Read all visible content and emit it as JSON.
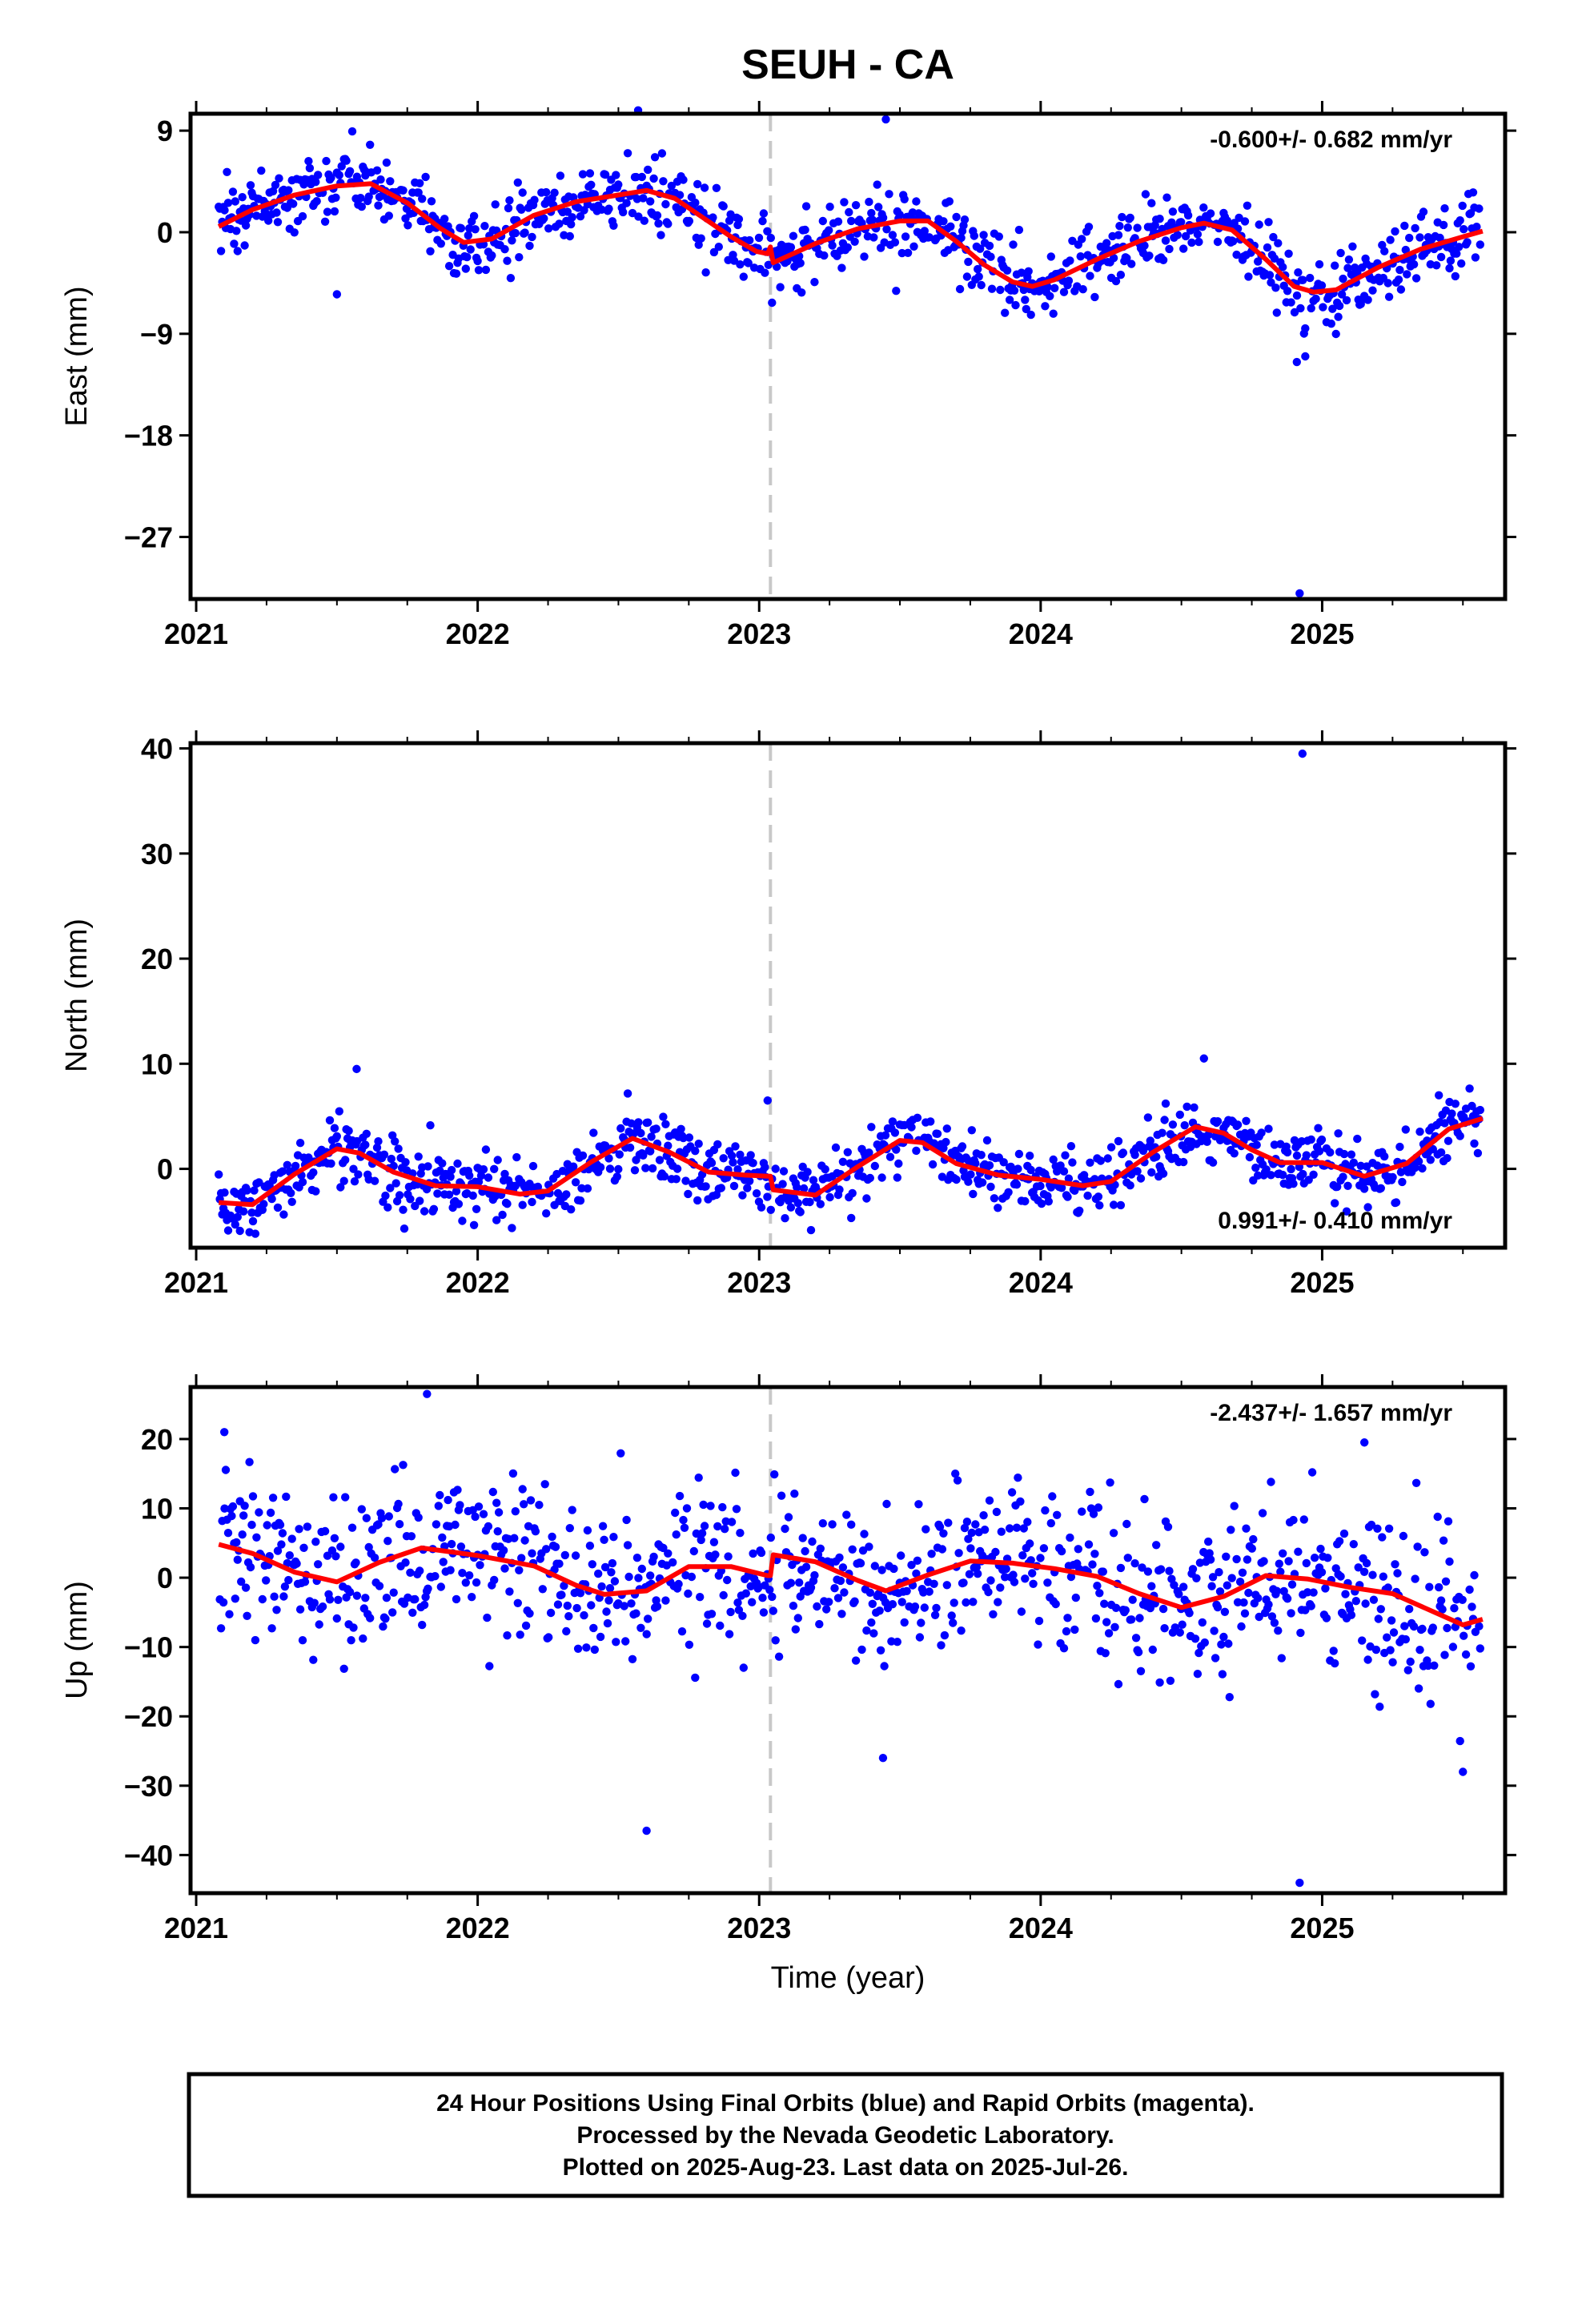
{
  "title": "SEUH - CA",
  "footer": {
    "line1": "24 Hour Positions Using Final Orbits (blue) and Rapid Orbits (magenta).",
    "line2": "Processed by the Nevada Geodetic Laboratory.",
    "line3": "Plotted on 2025-Aug-23. Last data on 2025-Jul-26."
  },
  "colors": {
    "points": "#0000ff",
    "model": "#ff0000",
    "event_line": "#c8c8c8",
    "frame": "#000000"
  },
  "chart_data": [
    {
      "type": "scatter",
      "ylabel": "East (mm)",
      "xlabel": "",
      "xlim": [
        2020.98,
        2025.65
      ],
      "ylim": [
        -32.5,
        10.5
      ],
      "yticks": [
        9,
        0,
        -9,
        -18,
        -27
      ],
      "xticks": [
        2021,
        2022,
        2023,
        2024,
        2025
      ],
      "rate_label": "-0.600+/- 0.682 mm/yr",
      "rate_position": "top-right",
      "event_lines": [
        2023.04
      ],
      "model": {
        "x": [
          2021.08,
          2021.2,
          2021.35,
          2021.5,
          2021.62,
          2021.75,
          2021.87,
          2021.95,
          2022.05,
          2022.2,
          2022.35,
          2022.5,
          2022.6,
          2022.7,
          2022.8,
          2022.9,
          2022.99,
          2023.03,
          2023.04,
          2023.05,
          2023.2,
          2023.35,
          2023.5,
          2023.6,
          2023.7,
          2023.8,
          2023.9,
          2023.97,
          2024.05,
          2024.2,
          2024.35,
          2024.5,
          2024.58,
          2024.68,
          2024.8,
          2024.9,
          2024.97,
          2025.05,
          2025.2,
          2025.35,
          2025.5,
          2025.57
        ],
        "y": [
          0.5,
          2.0,
          3.3,
          4.1,
          4.3,
          2.6,
          0.3,
          -0.9,
          -0.6,
          1.5,
          2.7,
          3.3,
          3.7,
          3.0,
          1.3,
          -0.4,
          -1.7,
          -1.9,
          -1.3,
          -2.7,
          -1.0,
          0.3,
          1.0,
          1.0,
          -0.8,
          -2.9,
          -4.4,
          -4.8,
          -4.2,
          -2.4,
          -0.8,
          0.4,
          0.8,
          0.2,
          -2.4,
          -4.8,
          -5.3,
          -5.1,
          -3.1,
          -1.5,
          -0.4,
          0.1
        ]
      },
      "seasonal": {
        "amplitude": 2.6,
        "phase_year": 2021.45
      },
      "outliers": {
        "x": [
          2021.5,
          2023.45,
          2024.92,
          2024.91,
          2024.94,
          2022.57
        ],
        "y": [
          -5.5,
          10.0,
          -32.0,
          -11.5,
          -11.0,
          10.8
        ]
      }
    },
    {
      "type": "scatter",
      "ylabel": "North (mm)",
      "xlabel": "",
      "xlim": [
        2020.98,
        2025.65
      ],
      "ylim": [
        -7.5,
        40.5
      ],
      "yticks": [
        40,
        30,
        20,
        10,
        0
      ],
      "xticks": [
        2021,
        2022,
        2023,
        2024,
        2025
      ],
      "rate_label": "0.991+/- 0.410 mm/yr",
      "rate_position": "bottom-right",
      "event_lines": [
        2023.04
      ],
      "model": {
        "x": [
          2021.08,
          2021.2,
          2021.35,
          2021.5,
          2021.58,
          2021.7,
          2021.85,
          2022.0,
          2022.15,
          2022.25,
          2022.4,
          2022.55,
          2022.68,
          2022.82,
          2022.95,
          2023.03,
          2023.04,
          2023.05,
          2023.2,
          2023.35,
          2023.5,
          2023.58,
          2023.7,
          2023.85,
          2024.0,
          2024.15,
          2024.25,
          2024.4,
          2024.55,
          2024.65,
          2024.75,
          2024.85,
          2025.0,
          2025.15,
          2025.3,
          2025.45,
          2025.57
        ],
        "y": [
          -3.2,
          -3.4,
          -0.5,
          1.9,
          1.5,
          -0.3,
          -1.6,
          -1.7,
          -2.4,
          -2.1,
          0.6,
          2.9,
          1.6,
          -0.3,
          -0.6,
          -0.7,
          -0.7,
          -2.0,
          -2.5,
          0.2,
          2.7,
          2.5,
          0.5,
          -0.6,
          -1.0,
          -1.6,
          -1.2,
          1.6,
          4.0,
          3.4,
          1.8,
          0.6,
          0.6,
          -0.7,
          0.5,
          3.8,
          4.8
        ]
      },
      "seasonal": {
        "amplitude": 2.3,
        "phase_year": 2021.5
      },
      "outliers": {
        "x": [
          2024.93,
          2023.03,
          2021.57,
          2024.58
        ],
        "y": [
          39.5,
          6.5,
          9.5,
          10.5
        ]
      }
    },
    {
      "type": "scatter",
      "ylabel": "Up (mm)",
      "xlabel": "Time (year)",
      "xlim": [
        2020.98,
        2025.65
      ],
      "ylim": [
        -45.5,
        27.5
      ],
      "yticks": [
        20,
        10,
        0,
        -10,
        -20,
        -30,
        -40
      ],
      "xticks": [
        2021,
        2022,
        2023,
        2024,
        2025
      ],
      "rate_label": "-2.437+/- 1.657 mm/yr",
      "rate_position": "top-right",
      "event_lines": [
        2023.04
      ],
      "model": {
        "x": [
          2021.08,
          2021.2,
          2021.35,
          2021.5,
          2021.65,
          2021.8,
          2022.0,
          2022.2,
          2022.35,
          2022.45,
          2022.6,
          2022.75,
          2022.9,
          2023.03,
          2023.04,
          2023.05,
          2023.2,
          2023.35,
          2023.45,
          2023.6,
          2023.75,
          2023.9,
          2024.05,
          2024.2,
          2024.35,
          2024.5,
          2024.65,
          2024.8,
          2024.95,
          2025.1,
          2025.25,
          2025.4,
          2025.5,
          2025.57
        ],
        "y": [
          4.8,
          3.5,
          0.8,
          -0.6,
          2.2,
          4.3,
          3.2,
          1.7,
          -1.1,
          -2.4,
          -1.9,
          1.6,
          1.6,
          0.3,
          0.3,
          3.3,
          2.3,
          -0.4,
          -1.9,
          0.4,
          2.4,
          2.1,
          1.3,
          0.2,
          -2.3,
          -4.3,
          -2.7,
          0.3,
          -0.2,
          -1.4,
          -2.3,
          -5.0,
          -6.8,
          -6.0
        ]
      },
      "seasonal": {
        "amplitude": 3.0,
        "phase_year": 2021.8
      },
      "outliers": {
        "x": [
          2022.6,
          2024.92,
          2025.5,
          2023.44,
          2021.1,
          2021.82,
          2025.15
        ],
        "y": [
          -36.5,
          -44.0,
          -28.0,
          -26.0,
          21.0,
          26.5,
          19.5
        ]
      }
    }
  ]
}
